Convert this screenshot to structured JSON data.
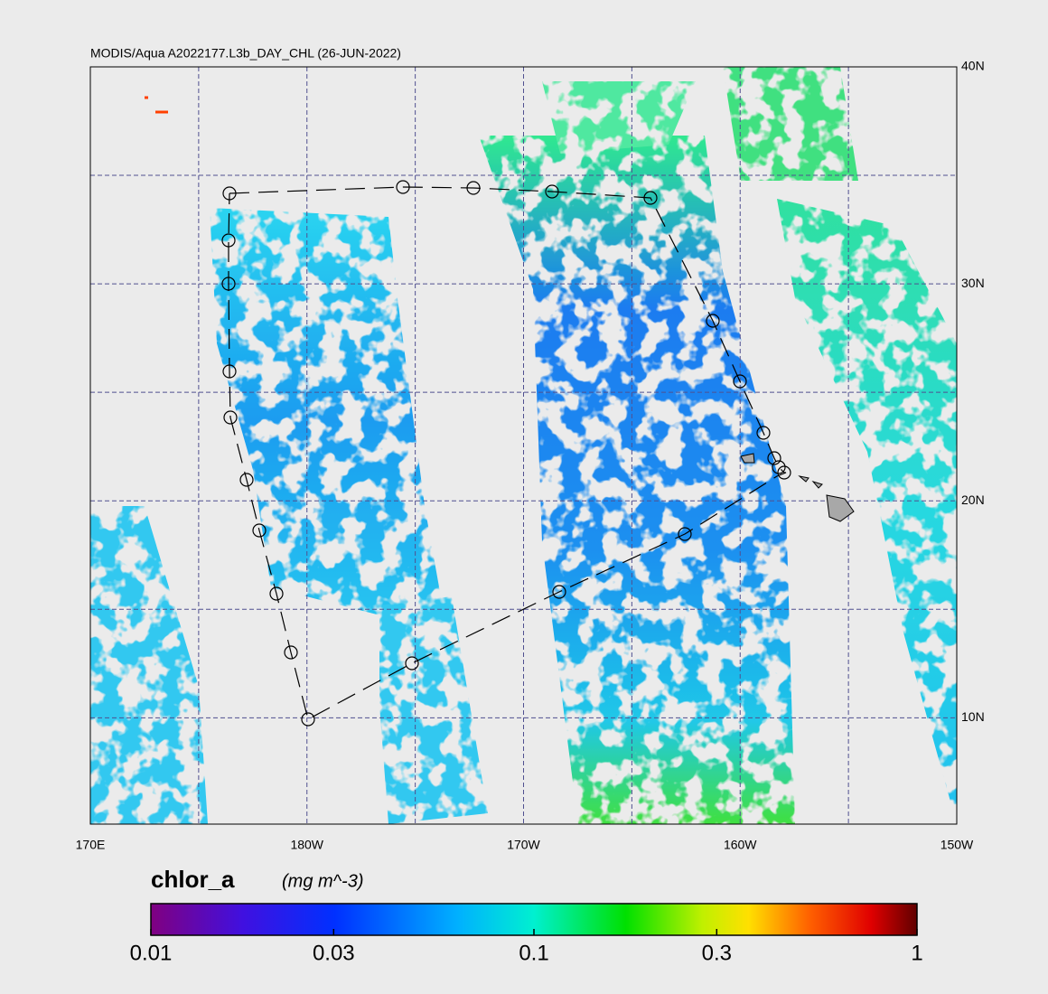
{
  "title": "MODIS/Aqua A2022177.L3b_DAY_CHL (26-JUN-2022)",
  "map": {
    "lon_lim": [
      170,
      210
    ],
    "lat_lim": [
      5.1,
      40
    ],
    "lon_ticks": [
      {
        "value": 170,
        "label": "170E"
      },
      {
        "value": 180,
        "label": "180W"
      },
      {
        "value": 190,
        "label": "170W"
      },
      {
        "value": 200,
        "label": "160W"
      },
      {
        "value": 210,
        "label": "150W"
      }
    ],
    "lat_ticks": [
      {
        "value": 10,
        "label": "10N"
      },
      {
        "value": 20,
        "label": "20N"
      },
      {
        "value": 30,
        "label": "30N"
      },
      {
        "value": 40,
        "label": "40N"
      }
    ],
    "lon_grid": [
      175,
      185,
      195,
      205
    ],
    "lat_grid": [
      15,
      25,
      35
    ]
  },
  "colorbar": {
    "variable": "chlor_a",
    "units": "(mg m^-3)",
    "lim": [
      0.01,
      1
    ],
    "log": true,
    "ticks": [
      0.01,
      0.03,
      0.1,
      0.3,
      1
    ]
  }
}
